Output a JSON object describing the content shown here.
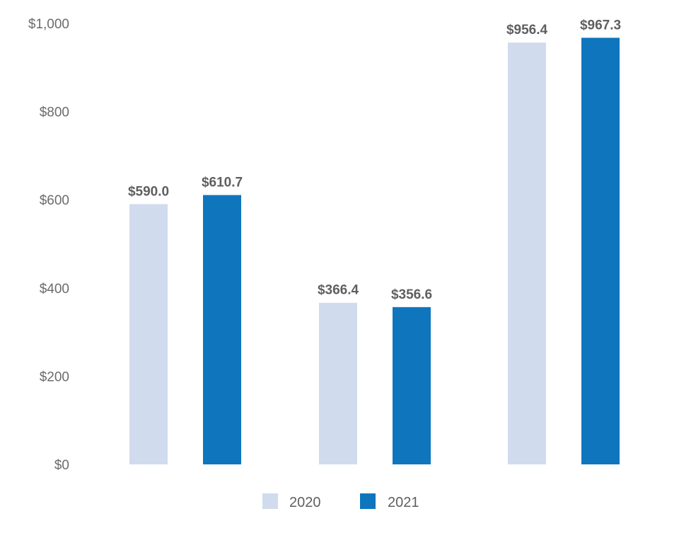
{
  "chart_data": {
    "type": "bar",
    "categories": [
      "",
      "",
      ""
    ],
    "series": [
      {
        "name": "2020",
        "values": [
          590.0,
          366.4,
          956.4
        ],
        "color": "#d0dbee"
      },
      {
        "name": "2021",
        "values": [
          610.7,
          356.6,
          967.3
        ],
        "color": "#0f76bd"
      }
    ],
    "value_labels": [
      [
        "$590.0",
        "$366.4",
        "$956.4"
      ],
      [
        "$610.7",
        "$356.6",
        "$967.3"
      ]
    ],
    "ylim": [
      0,
      1000
    ],
    "yticks": [
      0,
      200,
      400,
      600,
      800,
      1000
    ],
    "ytick_labels": [
      "$0",
      "$200",
      "$400",
      "$600",
      "$800",
      "$1,000"
    ],
    "grid": false,
    "legend_position": "bottom-center",
    "title": "",
    "xlabel": "",
    "ylabel": ""
  }
}
